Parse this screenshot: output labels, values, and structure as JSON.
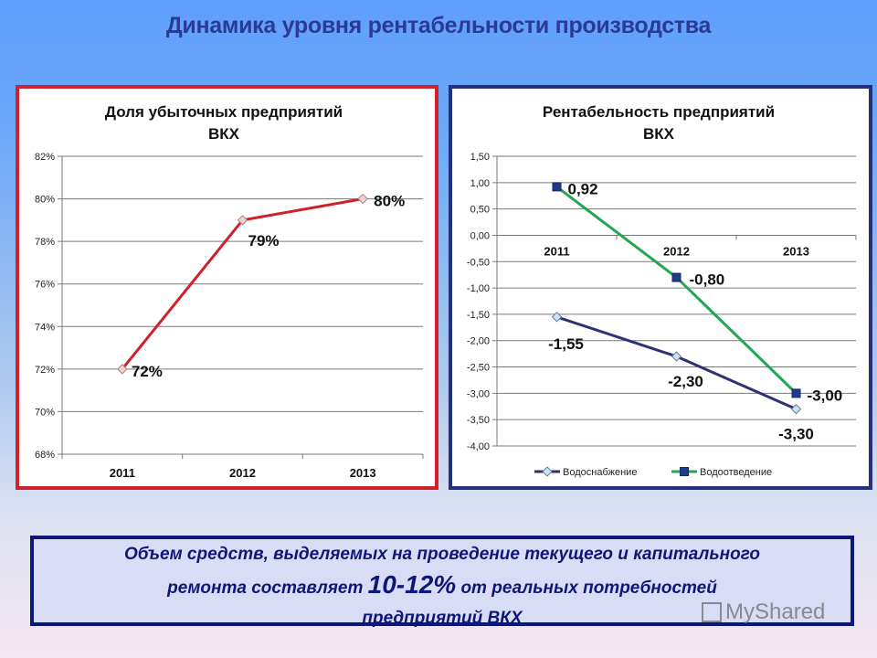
{
  "slide": {
    "title": "Динамика уровня рентабельности производства",
    "note": {
      "line1": "Объем средств, выделяемых на проведение текущего и капитального",
      "line2_pre": "ремонта составляет ",
      "line2_highlight": "10-12%",
      "line2_post": " от реальных потребностей",
      "line3": "предприятий ВКХ"
    },
    "watermark": "MyShared",
    "colors": {
      "title": "#2b3a94",
      "left_border": "#d0202a",
      "right_border": "#24307a",
      "note_text": "#0d1777"
    }
  },
  "chart_data": [
    {
      "type": "line",
      "title": "Доля убыточных предприятий ВКХ",
      "title_line1": "Доля убыточных предприятий",
      "title_line2": "ВКХ",
      "categories": [
        "2011",
        "2012",
        "2013"
      ],
      "series": [
        {
          "name": "Доля убыточных предприятий",
          "values": [
            72,
            79,
            80
          ],
          "labels": [
            "72%",
            "79%",
            "80%"
          ],
          "color": "#d0202a",
          "marker": "diamond"
        }
      ],
      "ylim": [
        68,
        82
      ],
      "yticks": [
        "82%",
        "80%",
        "78%",
        "76%",
        "74%",
        "72%",
        "70%",
        "68%"
      ],
      "xlabel": "",
      "ylabel": "",
      "grid": true,
      "legend": "none"
    },
    {
      "type": "line",
      "title": "Рентабельность предприятий ВКХ",
      "title_line1": "Рентабельность предприятий",
      "title_line2": "ВКХ",
      "categories": [
        "2011",
        "2012",
        "2013"
      ],
      "series": [
        {
          "name": "Водоснабжение",
          "values": [
            -1.55,
            -2.3,
            -3.3
          ],
          "labels": [
            "-1,55",
            "-2,30",
            "-3,30"
          ],
          "color": "#2e3272",
          "marker": "diamond"
        },
        {
          "name": "Водоотведение",
          "values": [
            0.92,
            -0.8,
            -3.0
          ],
          "labels": [
            "0,92",
            "-0,80",
            "-3,00"
          ],
          "color": "#22a650",
          "marker": "square"
        }
      ],
      "ylim": [
        -4.0,
        1.5
      ],
      "yticks": [
        "1,50",
        "1,00",
        "0,50",
        "0,00",
        "-0,50",
        "-1,00",
        "-1,50",
        "-2,00",
        "-2,50",
        "-3,00",
        "-3,50",
        "-4,00"
      ],
      "xlabel": "",
      "ylabel": "",
      "grid": true,
      "legend": "bottom"
    }
  ]
}
